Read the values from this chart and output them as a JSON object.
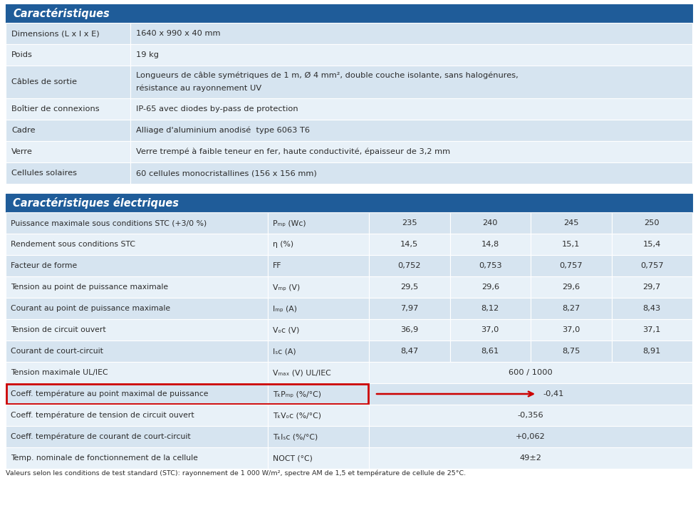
{
  "header1": "Caractéristiques",
  "header2": "Caractéristiques électriques",
  "header_bg": "#1a5276",
  "header_text_color": "#ffffff",
  "section1_rows": [
    {
      "label": "Dimensions (L x l x E)",
      "value": "1640 x 990 x 40 mm",
      "tall": false
    },
    {
      "label": "Poids",
      "value": "19 kg",
      "tall": false
    },
    {
      "label": "Câbles de sortie",
      "value": "Longueurs de câble symétriques de 1 m, Ø 4 mm², double couche isolante, sans halogénures,\nrésistance au rayonnement UV",
      "tall": true
    },
    {
      "label": "Boîtier de connexions",
      "value": "IP-65 avec diodes by-pass de protection",
      "tall": false
    },
    {
      "label": "Cadre",
      "value": "Alliage d'aluminium anodisé  type 6063 T6",
      "tall": false
    },
    {
      "label": "Verre",
      "value": "Verre trempé à faible teneur en fer, haute conductivité, épaisseur de 3,2 mm",
      "tall": false
    },
    {
      "label": "Cellules solaires",
      "value": "60 cellules monocristallines (156 x 156 mm)",
      "tall": false
    }
  ],
  "section2_rows": [
    {
      "label": "Puissance maximale sous conditions STC (+3/0 %)",
      "symbol": "Pₘₚ (Wc)",
      "values": [
        "235",
        "240",
        "245",
        "250"
      ],
      "span": false
    },
    {
      "label": "Rendement sous conditions STC",
      "symbol": "η (%)",
      "values": [
        "14,5",
        "14,8",
        "15,1",
        "15,4"
      ],
      "span": false
    },
    {
      "label": "Facteur de forme",
      "symbol": "FF",
      "values": [
        "0,752",
        "0,753",
        "0,757",
        "0,757"
      ],
      "span": false
    },
    {
      "label": "Tension au point de puissance maximale",
      "symbol": "Vₘₚ (V)",
      "values": [
        "29,5",
        "29,6",
        "29,6",
        "29,7"
      ],
      "span": false
    },
    {
      "label": "Courant au point de puissance maximale",
      "symbol": "Iₘₚ (A)",
      "values": [
        "7,97",
        "8,12",
        "8,27",
        "8,43"
      ],
      "span": false
    },
    {
      "label": "Tension de circuit ouvert",
      "symbol": "Vₒᴄ (V)",
      "values": [
        "36,9",
        "37,0",
        "37,0",
        "37,1"
      ],
      "span": false
    },
    {
      "label": "Courant de court-circuit",
      "symbol": "Iₛᴄ (A)",
      "values": [
        "8,47",
        "8,61",
        "8,75",
        "8,91"
      ],
      "span": false
    },
    {
      "label": "Tension maximale UL/IEC",
      "symbol": "Vₘₐₓ (V) UL/IEC",
      "values": [
        "600 / 1000"
      ],
      "span": true,
      "highlight": false,
      "arrow": false
    },
    {
      "label": "Coeff. température au point maximal de puissance",
      "symbol": "TₖPₘₚ (%/°C)",
      "values": [
        "-0,41"
      ],
      "span": true,
      "highlight": true,
      "arrow": true
    },
    {
      "label": "Coeff. température de tension de circuit ouvert",
      "symbol": "TₖVₒᴄ (%/°C)",
      "values": [
        "-0,356"
      ],
      "span": true,
      "highlight": false,
      "arrow": false
    },
    {
      "label": "Coeff. température de courant de court-circuit",
      "symbol": "TₖIₛᴄ (%/°C)",
      "values": [
        "+0,062"
      ],
      "span": true,
      "highlight": false,
      "arrow": false
    },
    {
      "label": "Temp. nominale de fonctionnement de la cellule",
      "symbol": "NOCT (°C)",
      "values": [
        "49±2"
      ],
      "span": true,
      "highlight": false,
      "arrow": false
    }
  ],
  "footnote": "Valeurs selon les conditions de test standard (STC): rayonnement de 1 000 W/m², spectre AM de 1,5 et température de cellule de 25°C.",
  "row_colors": [
    "#d6e4f0",
    "#e8f1f8"
  ],
  "header_bg_color": "#1f5c99",
  "text_dark": "#2c2c2c",
  "white": "#ffffff",
  "red": "#cc0000"
}
